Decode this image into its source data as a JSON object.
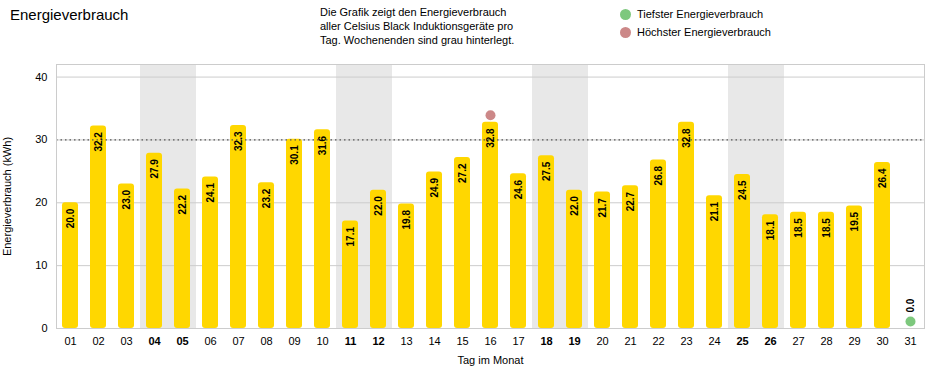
{
  "chart_data": {
    "type": "bar",
    "title": "Energieverbrauch",
    "subtitle": "Die Grafik zeigt den Energieverbrauch\naller Celsius Black Induktionsgeräte pro\nTag. Wochenenden sind grau hinterlegt.",
    "xlabel": "Tag im Monat",
    "ylabel": "Energieverbrauch (kWh)",
    "categories": [
      "01",
      "02",
      "03",
      "04",
      "05",
      "06",
      "07",
      "08",
      "09",
      "10",
      "11",
      "12",
      "13",
      "14",
      "15",
      "16",
      "17",
      "18",
      "19",
      "20",
      "21",
      "22",
      "23",
      "24",
      "25",
      "26",
      "27",
      "28",
      "29",
      "30",
      "31"
    ],
    "values": [
      20.0,
      32.2,
      23.0,
      27.9,
      22.2,
      24.1,
      32.3,
      23.2,
      30.1,
      31.6,
      17.1,
      22.0,
      19.8,
      24.9,
      27.2,
      32.8,
      24.6,
      27.5,
      22.0,
      21.7,
      22.7,
      26.8,
      32.8,
      21.1,
      24.5,
      18.1,
      18.5,
      18.5,
      19.5,
      26.4,
      0.0
    ],
    "value_labels": [
      "20.0",
      "32.2",
      "23.0",
      "27.9",
      "22.2",
      "24.1",
      "32.3",
      "23.2",
      "30.1",
      "31.6",
      "17.1",
      "22.0",
      "19.8",
      "24.9",
      "27.2",
      "32.8",
      "24.6",
      "27.5",
      "22.0",
      "21.7",
      "22.7",
      "26.8",
      "32.8",
      "21.1",
      "24.5",
      "18.1",
      "18.5",
      "18.5",
      "19.5",
      "26.4",
      "0.0"
    ],
    "data_labels": true,
    "color": "#FFD700",
    "weekend_categories": [
      "04",
      "05",
      "11",
      "12",
      "18",
      "19",
      "25",
      "26"
    ],
    "weekend_color": "#E8E8E8",
    "reference_lines": [
      {
        "y": 30,
        "color": "#555555",
        "line_style": "dotted"
      }
    ],
    "markers": [
      {
        "name": "Tiefster Energieverbrauch",
        "color": "#7DC87D",
        "category": "31"
      },
      {
        "name": "Höchster Energieverbrauch",
        "color": "#CC8888",
        "category": "16"
      }
    ],
    "ylim": [
      0,
      42
    ],
    "yticks": [
      0,
      10,
      20,
      30,
      40
    ],
    "grid": true
  }
}
